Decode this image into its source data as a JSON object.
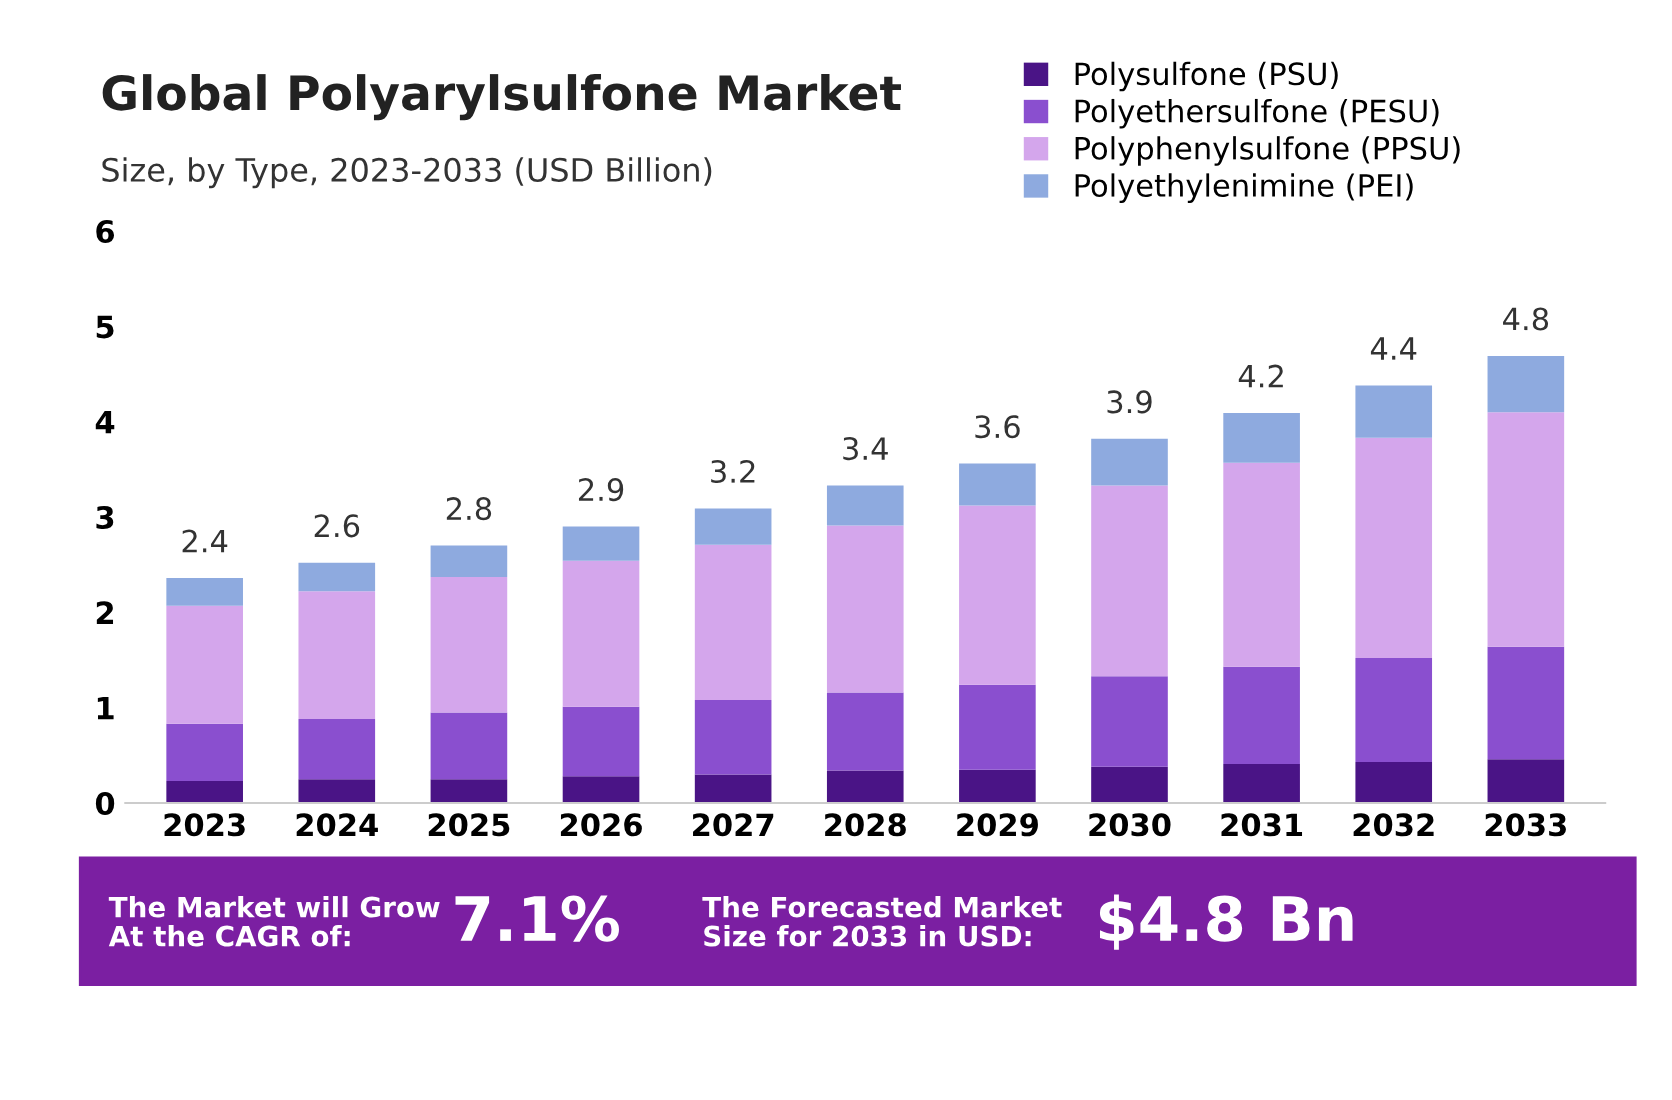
{
  "chart_data": {
    "type": "bar",
    "stacked": true,
    "title": "Global Polyarylsulfone Market",
    "subtitle": "Size, by Type, 2023-2033 (USD Billion)",
    "categories": [
      "2023",
      "2024",
      "2025",
      "2026",
      "2027",
      "2028",
      "2029",
      "2030",
      "2031",
      "2032",
      "2033"
    ],
    "series": [
      {
        "name": "Polysulfone (PSU)",
        "color": "#4a1486",
        "values": [
          0.23,
          0.25,
          0.25,
          0.28,
          0.3,
          0.34,
          0.35,
          0.38,
          0.41,
          0.43,
          0.46
        ]
      },
      {
        "name": "Polyethersulfone (PESU)",
        "color": "#8a4fcf",
        "values": [
          0.6,
          0.63,
          0.7,
          0.73,
          0.78,
          0.82,
          0.89,
          0.95,
          1.02,
          1.09,
          1.18
        ]
      },
      {
        "name": "Polyphenylsulfone (PPSU)",
        "color": "#d4a6ec",
        "values": [
          1.24,
          1.34,
          1.42,
          1.53,
          1.63,
          1.75,
          1.88,
          2.0,
          2.14,
          2.31,
          2.46
        ]
      },
      {
        "name": "Polyethylenimine (PEI)",
        "color": "#8eaadf",
        "values": [
          0.29,
          0.3,
          0.33,
          0.36,
          0.38,
          0.42,
          0.44,
          0.49,
          0.52,
          0.55,
          0.59
        ]
      }
    ],
    "totals": [
      "2.4",
      "2.6",
      "2.8",
      "2.9",
      "3.2",
      "3.4",
      "3.6",
      "3.9",
      "4.2",
      "4.4",
      "4.8"
    ],
    "ylim": [
      0,
      6
    ],
    "yticks": [
      0,
      1,
      2,
      3,
      4,
      5,
      6
    ],
    "grid": false,
    "legend": "top right",
    "annotations": [
      "The Market will Grow\nAt the CAGR of:",
      "7.1%",
      "The Forecasted Market\nSize for 2033 in USD:",
      "$4.8 Bn"
    ]
  }
}
